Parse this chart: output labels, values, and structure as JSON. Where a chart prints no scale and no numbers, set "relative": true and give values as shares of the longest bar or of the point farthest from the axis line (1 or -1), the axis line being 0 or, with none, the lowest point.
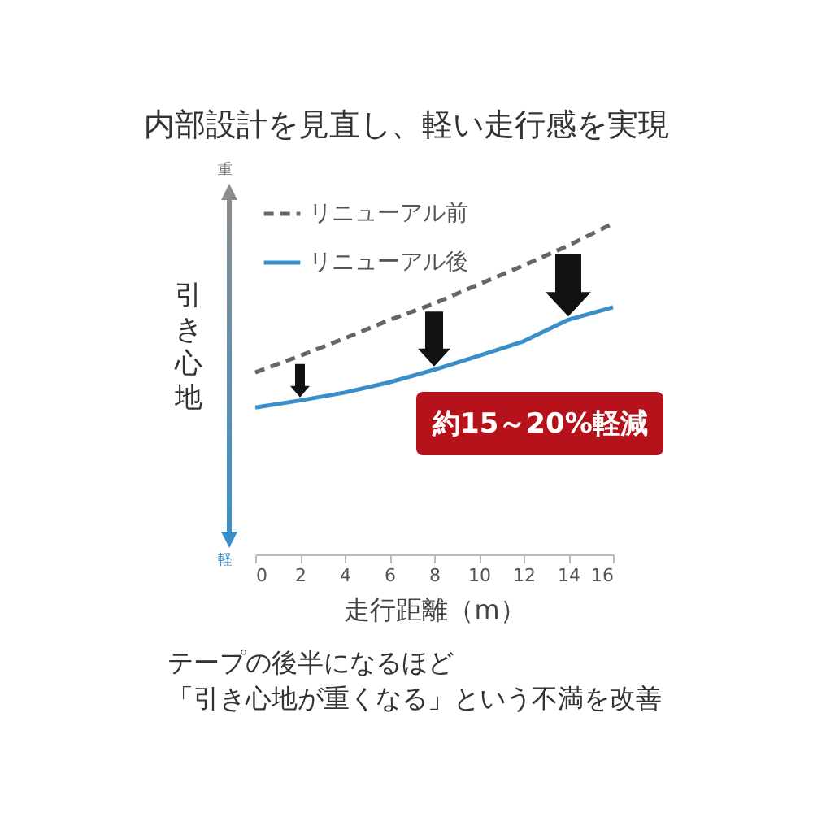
{
  "chart_data": {
    "type": "line",
    "title": "内部設計を見直し、軽い走行感を実現",
    "xlabel": "走行距離（m）",
    "ylabel": "引き心地",
    "annotations": [
      "重",
      "軽",
      "約15～20%軽減",
      "テープの後半になるほど",
      "「引き心地が重くなる」という不満を改善"
    ],
    "x": [
      0,
      2,
      4,
      6,
      8,
      10,
      12,
      14,
      16
    ],
    "series": [
      {
        "name": "リニューアル前",
        "color": "#666666",
        "line_style": "dashed",
        "values": [
          0.55,
          0.6,
          0.653,
          0.708,
          0.758,
          0.816,
          0.873,
          0.933,
          1.0
        ]
      },
      {
        "name": "リニューアル後",
        "color": "#3a8fc8",
        "line_style": "solid",
        "values": [
          0.444,
          0.465,
          0.489,
          0.52,
          0.558,
          0.6,
          0.644,
          0.709,
          0.747
        ]
      }
    ],
    "relative": true,
    "xlim": [
      0,
      16
    ],
    "xticks": [
      0,
      2,
      4,
      6,
      8,
      10,
      12,
      14,
      16
    ],
    "grid": false,
    "legend": "top left",
    "marker": "none"
  }
}
